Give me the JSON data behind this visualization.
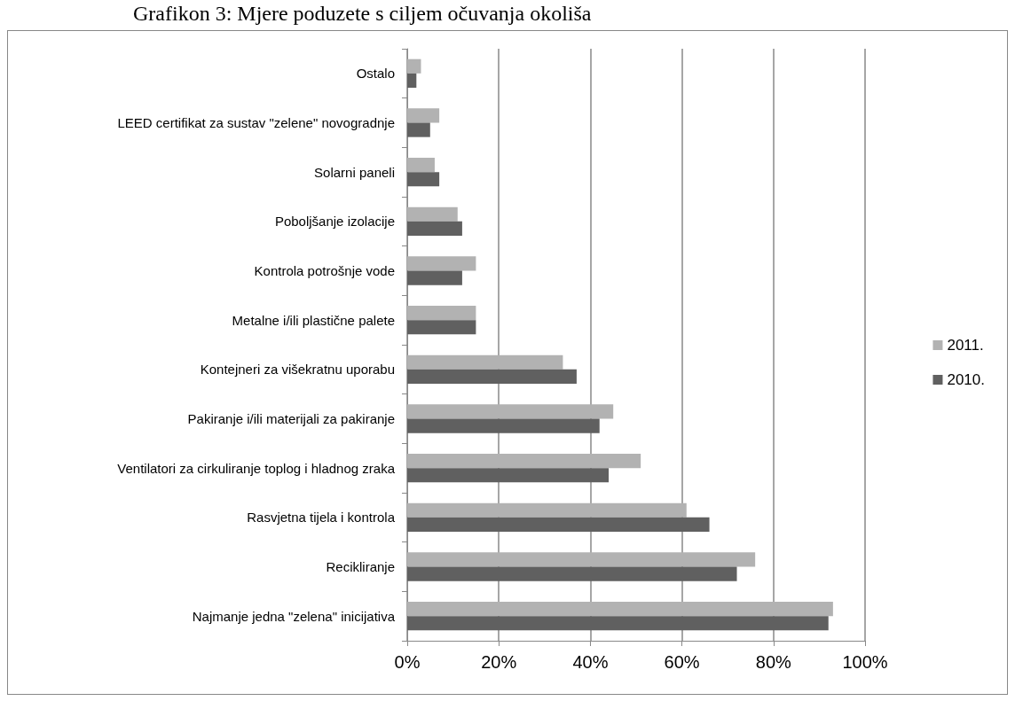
{
  "chart_data": {
    "type": "bar",
    "orientation": "horizontal",
    "title": "Grafikon 3: Mjere poduzete s ciljem očuvanja okoliša",
    "categories": [
      "Ostalo",
      "LEED certifikat za sustav \"zelene\" novogradnje",
      "Solarni paneli",
      "Poboljšanje izolacije",
      "Kontrola potrošnje vode",
      "Metalne i/ili plastične palete",
      "Kontejneri za višekratnu uporabu",
      "Pakiranje i/ili materijali za pakiranje",
      "Ventilatori za cirkuliranje toplog i hladnog zraka",
      "Rasvjetna tijela i kontrola",
      "Recikliranje",
      "Najmanje jedna \"zelena\" inicijativa"
    ],
    "series": [
      {
        "name": "2011.",
        "color": "#b2b2b2",
        "values": [
          3,
          7,
          6,
          11,
          15,
          15,
          34,
          45,
          51,
          61,
          76,
          93
        ]
      },
      {
        "name": "2010.",
        "color": "#606060",
        "values": [
          2,
          5,
          7,
          12,
          12,
          15,
          37,
          42,
          44,
          66,
          72,
          92
        ]
      }
    ],
    "xlim": [
      0,
      100
    ],
    "xticks": [
      {
        "value": 0,
        "label": "0%"
      },
      {
        "value": 20,
        "label": "20%"
      },
      {
        "value": 40,
        "label": "40%"
      },
      {
        "value": 60,
        "label": "60%"
      },
      {
        "value": 80,
        "label": "80%"
      },
      {
        "value": 100,
        "label": "100%"
      }
    ],
    "grid": "x",
    "legend": "right"
  }
}
